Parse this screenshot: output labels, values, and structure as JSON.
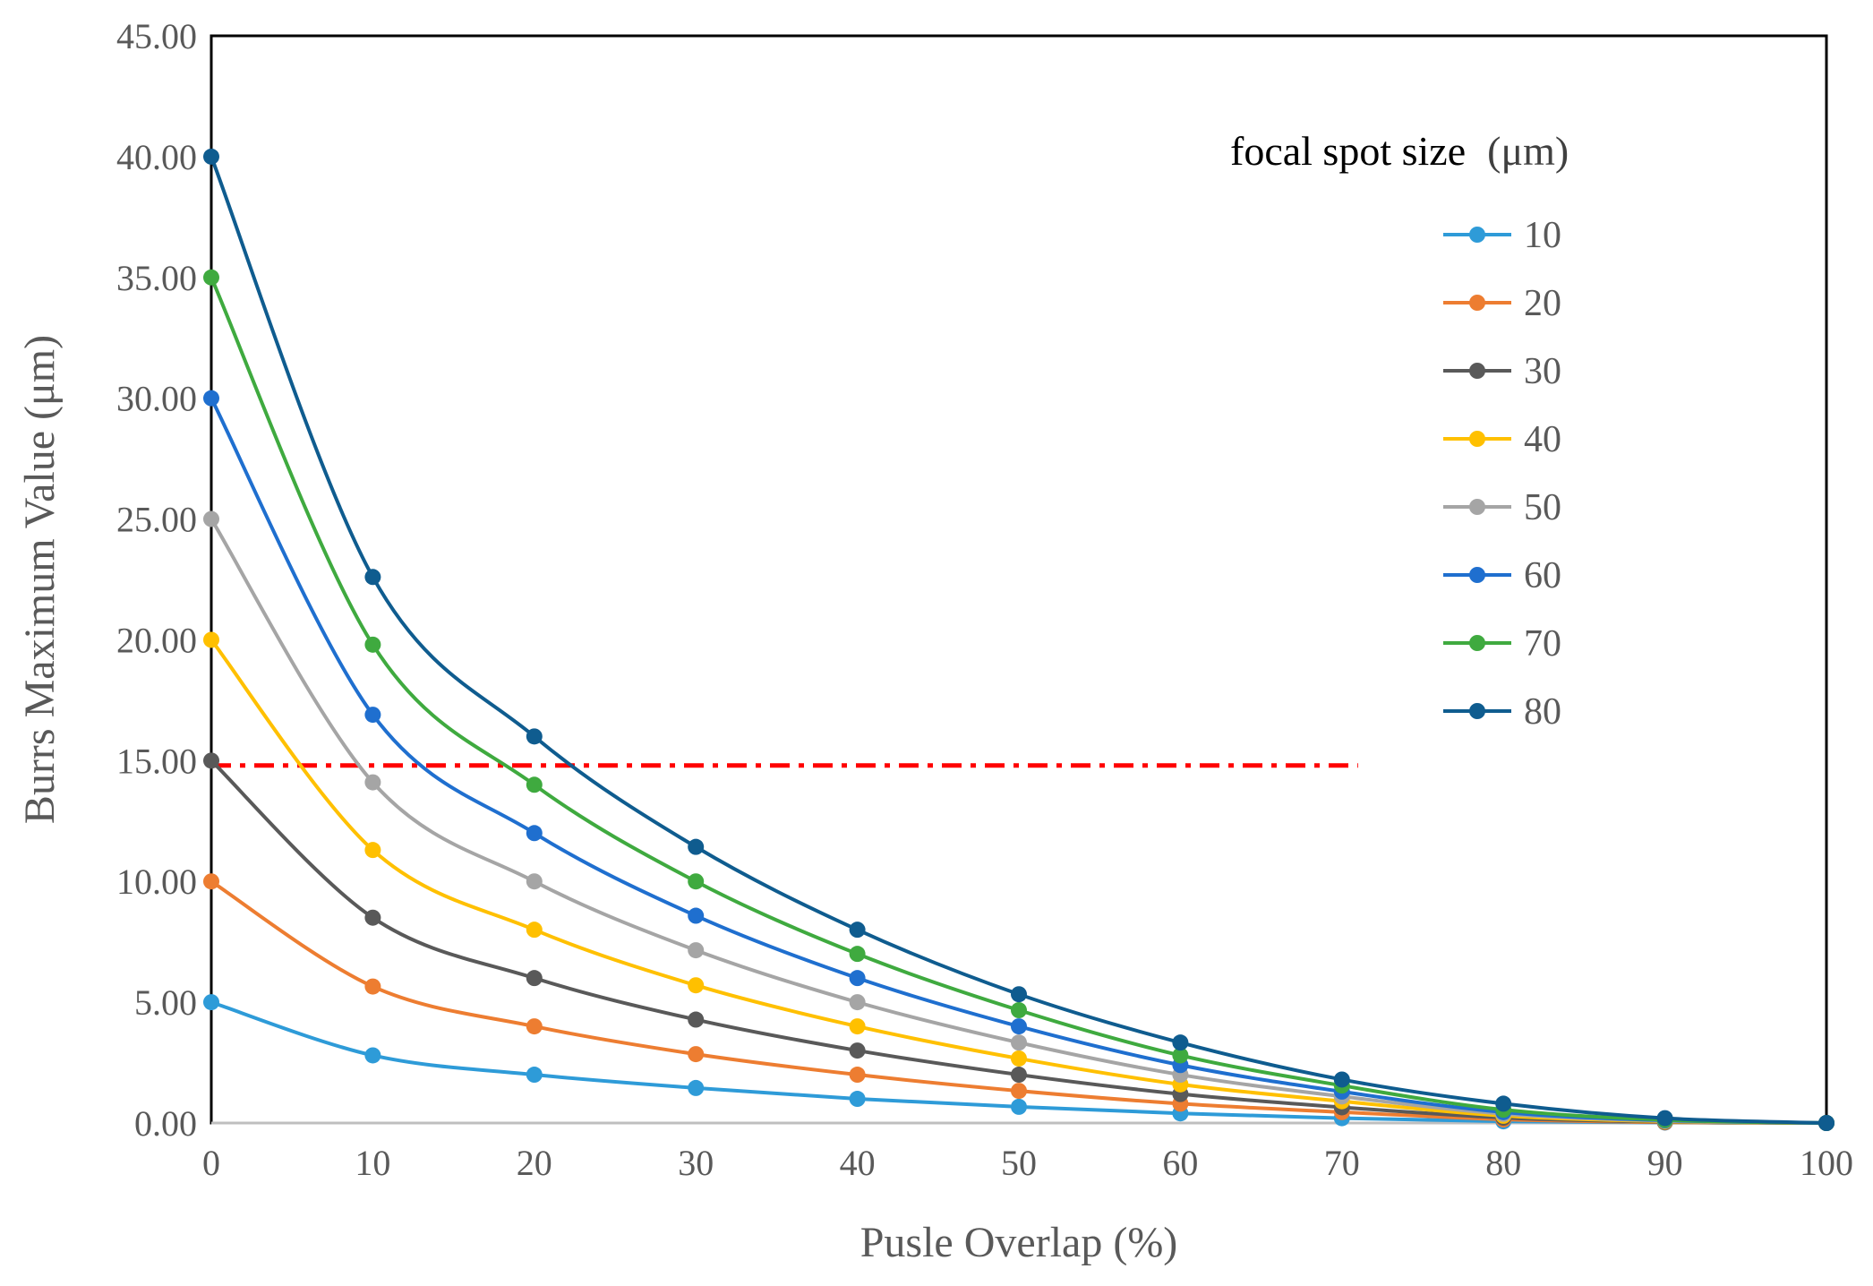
{
  "chart_data": {
    "type": "line",
    "xlabel": "Pusle Overlap  (%)",
    "ylabel": "Burrs Maximum Value (μm)",
    "xlim": [
      0,
      100
    ],
    "ylim": [
      0,
      45
    ],
    "x": [
      0,
      10,
      20,
      30,
      40,
      50,
      60,
      70,
      80,
      90,
      100
    ],
    "x_tick_labels": [
      "0",
      "10",
      "20",
      "30",
      "40",
      "50",
      "60",
      "70",
      "80",
      "90",
      "100"
    ],
    "y_ticks": [
      0,
      5,
      10,
      15,
      20,
      25,
      30,
      35,
      40,
      45
    ],
    "y_tick_labels": [
      "0.00",
      "5.00",
      "10.00",
      "15.00",
      "20.00",
      "25.00",
      "30.00",
      "35.00",
      "40.00",
      "45.00"
    ],
    "grid": false,
    "legend": {
      "title": "focal spot size",
      "title_unit": "(μm)",
      "placement": "right"
    },
    "series": [
      {
        "name": "10",
        "color": "#2E9BD8",
        "values": [
          5.0,
          2.8,
          2.0,
          1.45,
          1.0,
          0.67,
          0.4,
          0.2,
          0.07,
          0.02,
          0.0
        ]
      },
      {
        "name": "20",
        "color": "#ED7D31",
        "values": [
          10.0,
          5.65,
          4.0,
          2.85,
          2.0,
          1.33,
          0.8,
          0.45,
          0.15,
          0.03,
          0.0
        ]
      },
      {
        "name": "30",
        "color": "#595959",
        "values": [
          15.0,
          8.5,
          6.0,
          4.28,
          3.0,
          2.0,
          1.2,
          0.65,
          0.22,
          0.05,
          0.0
        ]
      },
      {
        "name": "40",
        "color": "#FFC000",
        "values": [
          20.0,
          11.3,
          8.0,
          5.7,
          4.0,
          2.67,
          1.6,
          0.9,
          0.3,
          0.07,
          0.0
        ]
      },
      {
        "name": "50",
        "color": "#A5A5A5",
        "values": [
          25.0,
          14.1,
          10.0,
          7.15,
          5.0,
          3.33,
          2.0,
          1.1,
          0.38,
          0.09,
          0.0
        ]
      },
      {
        "name": "60",
        "color": "#1F6FCF",
        "values": [
          30.0,
          16.9,
          12.0,
          8.58,
          6.0,
          4.0,
          2.4,
          1.3,
          0.45,
          0.11,
          0.0
        ]
      },
      {
        "name": "70",
        "color": "#3FAA3F",
        "values": [
          35.0,
          19.8,
          14.0,
          10.0,
          7.0,
          4.67,
          2.8,
          1.55,
          0.55,
          0.13,
          0.0
        ]
      },
      {
        "name": "80",
        "color": "#0F5C8F",
        "values": [
          40.0,
          22.6,
          16.0,
          11.43,
          8.0,
          5.33,
          3.33,
          1.8,
          0.8,
          0.2,
          0.0
        ]
      }
    ],
    "reference_line": {
      "y": 14.8,
      "x_range": [
        0,
        71
      ],
      "style": "dash-dot",
      "color": "#FF0000"
    }
  }
}
